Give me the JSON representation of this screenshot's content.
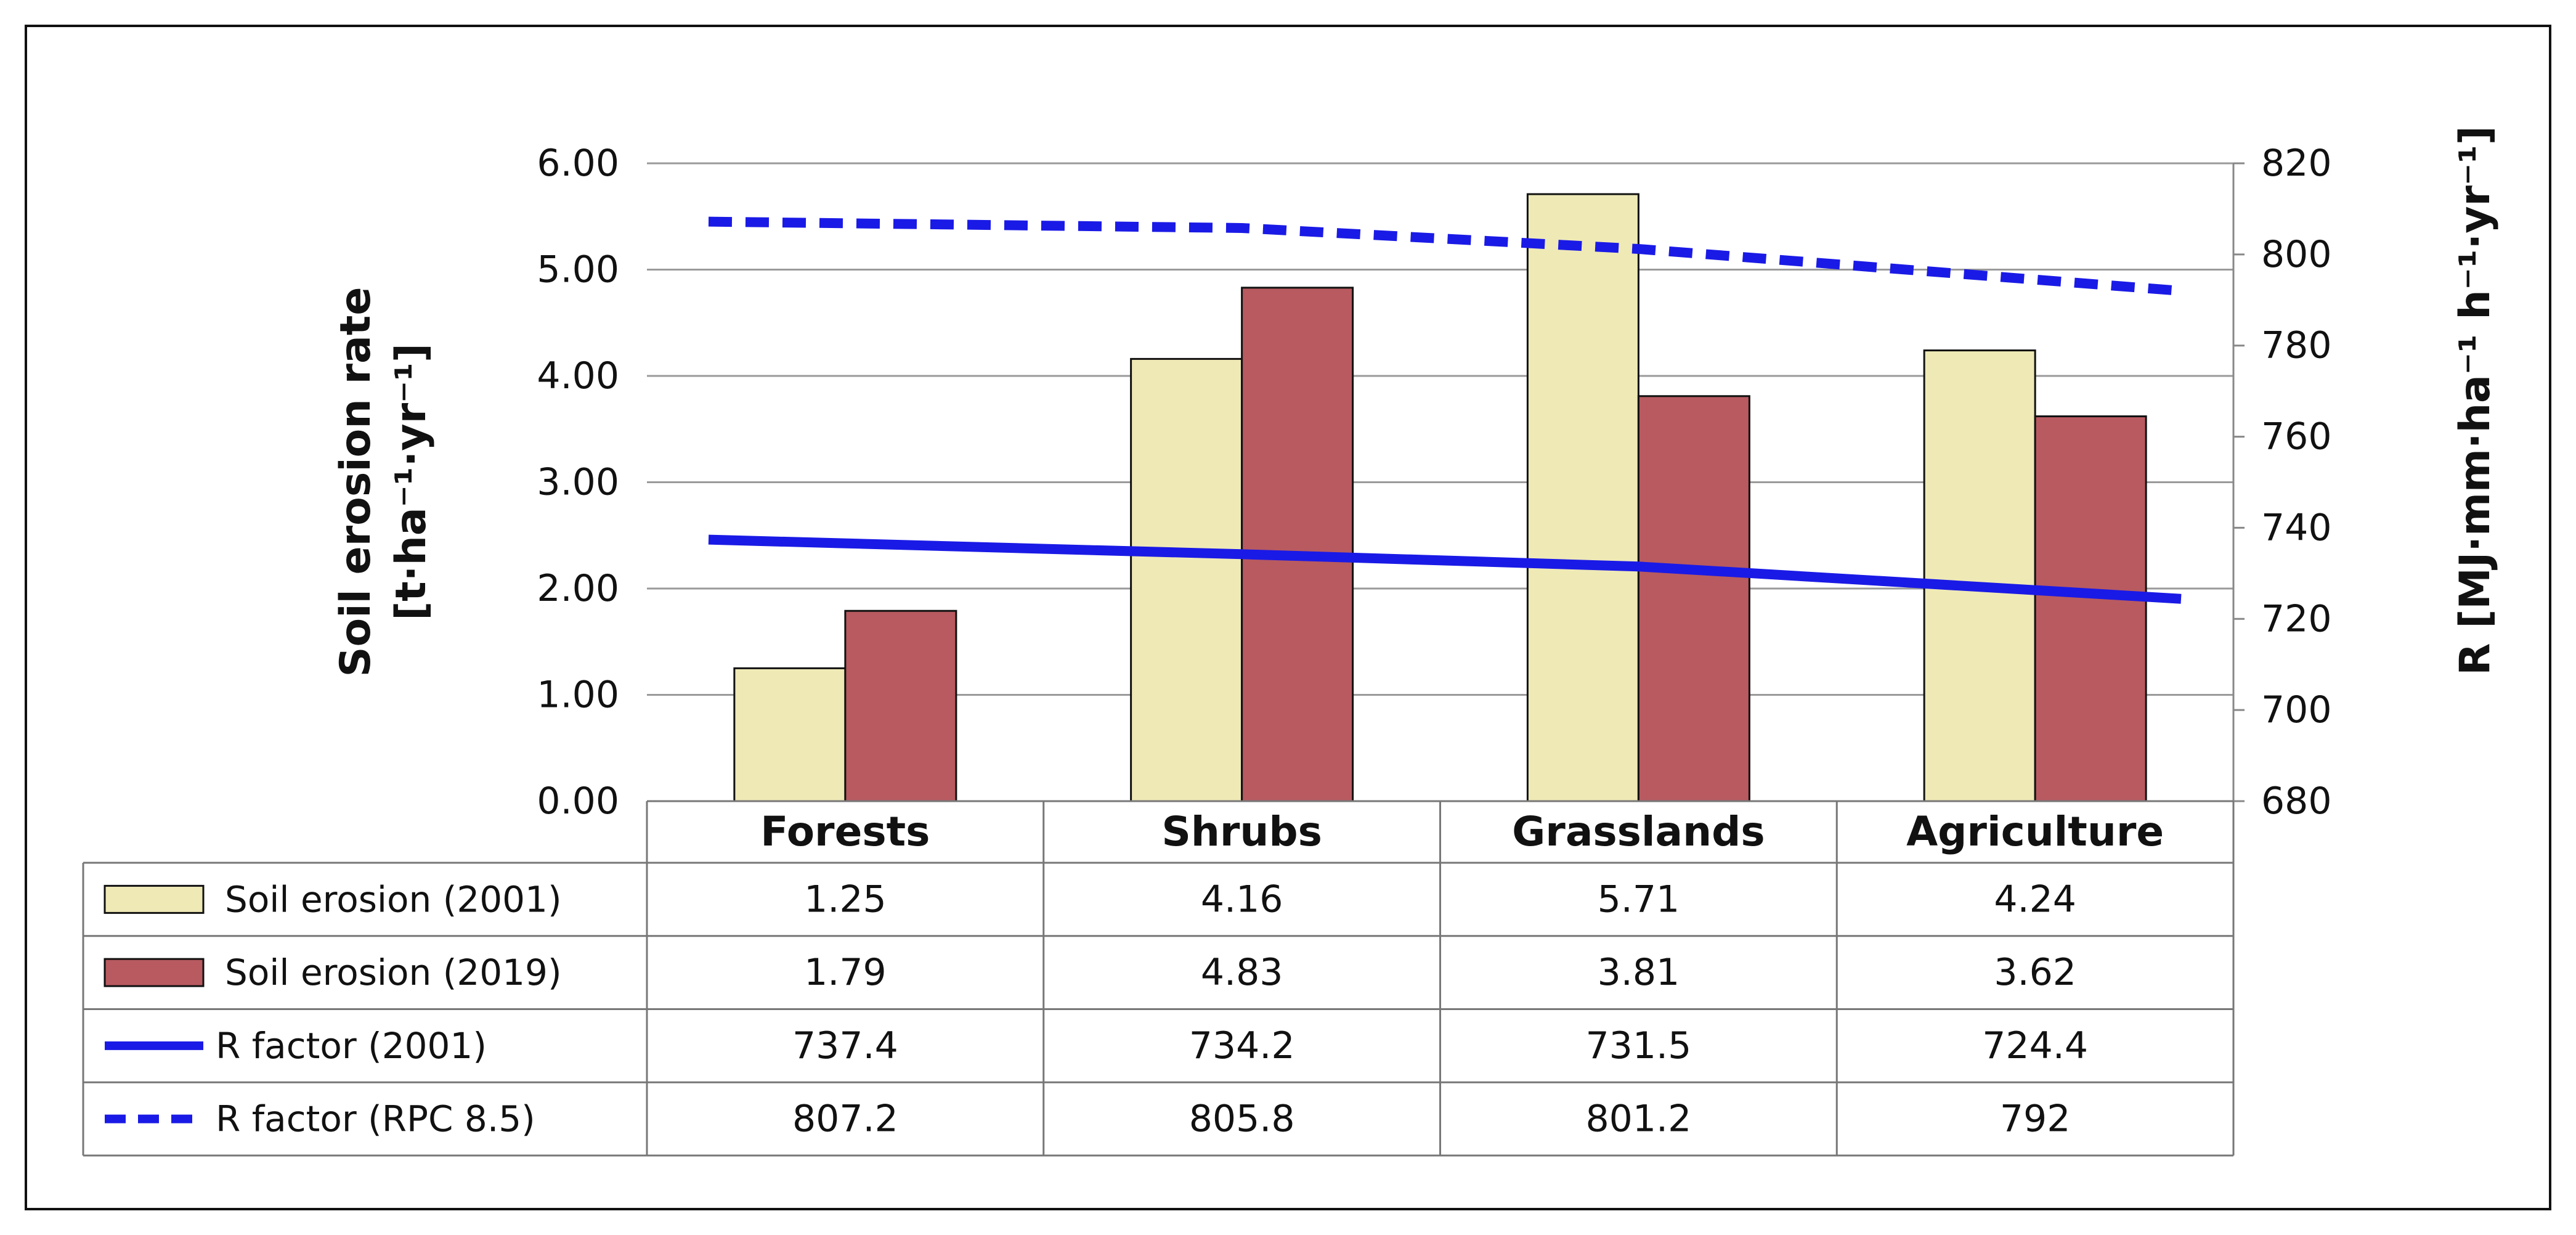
{
  "chart_data": {
    "type": "bar",
    "categories": [
      "Forests",
      "Shrubs",
      "Grasslands",
      "Agriculture"
    ],
    "series": [
      {
        "name": "Soil erosion (2001)",
        "kind": "bar",
        "axis": "left",
        "color": "#efe9b6",
        "values": [
          1.25,
          4.16,
          5.71,
          4.24
        ],
        "cells": [
          "1.25",
          "4.16",
          "5.71",
          "4.24"
        ]
      },
      {
        "name": "Soil erosion (2019)",
        "kind": "bar",
        "axis": "left",
        "color": "#b85a60",
        "values": [
          1.79,
          4.83,
          3.81,
          3.62
        ],
        "cells": [
          "1.79",
          "4.83",
          "3.81",
          "3.62"
        ]
      },
      {
        "name": "R factor (2001)",
        "kind": "line",
        "axis": "right",
        "color": "#1a1ae6",
        "dashed": false,
        "values": [
          737.4,
          734.2,
          731.5,
          724.4
        ],
        "cells": [
          "737.4",
          "734.2",
          "731.5",
          "724.4"
        ]
      },
      {
        "name": "R factor (RPC 8.5)",
        "kind": "line",
        "axis": "right",
        "color": "#1a1ae6",
        "dashed": true,
        "values": [
          807.2,
          805.8,
          801.2,
          792
        ],
        "cells": [
          "807.2",
          "805.8",
          "801.2",
          "792"
        ]
      }
    ],
    "ylabel_line1": "Soil erosion rate",
    "ylabel_line2": "[t·ha⁻¹·yr⁻¹]",
    "y2label": "R [MJ·mm·ha⁻¹ h⁻¹·yr⁻¹]",
    "ylim": [
      0,
      6
    ],
    "y2lim": [
      680,
      820
    ],
    "yticks": [
      "0.00",
      "1.00",
      "2.00",
      "3.00",
      "4.00",
      "5.00",
      "6.00"
    ],
    "y2ticks": [
      "680",
      "700",
      "720",
      "740",
      "760",
      "780",
      "800",
      "820"
    ],
    "grid": true,
    "legend": "data-table"
  }
}
